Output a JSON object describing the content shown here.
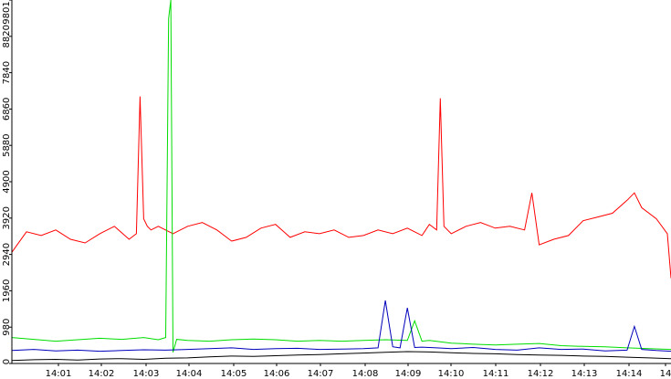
{
  "chart_data": {
    "type": "line",
    "title": "",
    "xlabel": "",
    "ylabel": "",
    "grid": false,
    "legend": "none",
    "x_range": [
      "14:00:00",
      "14:15:00"
    ],
    "ylim": [
      0,
      9801
    ],
    "y_ticks": [
      "0",
      "980",
      "1960",
      "2940",
      "3920",
      "4900",
      "5880",
      "6860",
      "7840",
      "8820",
      "9801"
    ],
    "x_ticks": [
      "14:01",
      "14:02",
      "14:03",
      "14:04",
      "14:05",
      "14:06",
      "14:07",
      "14:08",
      "14:09",
      "14:10",
      "14:11",
      "14:12",
      "14:13",
      "14:14",
      "14"
    ],
    "series": [
      {
        "color": "#ff0000",
        "x": [
          "14:00:00",
          "14:00:20",
          "14:00:40",
          "14:01:00",
          "14:01:20",
          "14:01:40",
          "14:02:00",
          "14:02:20",
          "14:02:40",
          "14:02:50",
          "14:02:55",
          "14:03:00",
          "14:03:05",
          "14:03:10",
          "14:03:20",
          "14:03:40",
          "14:04:00",
          "14:04:20",
          "14:04:40",
          "14:05:00",
          "14:05:20",
          "14:05:40",
          "14:06:00",
          "14:06:20",
          "14:06:40",
          "14:07:00",
          "14:07:20",
          "14:07:40",
          "14:08:00",
          "14:08:20",
          "14:08:40",
          "14:09:00",
          "14:09:20",
          "14:09:30",
          "14:09:40",
          "14:09:45",
          "14:09:50",
          "14:10:00",
          "14:10:20",
          "14:10:40",
          "14:11:00",
          "14:11:20",
          "14:11:40",
          "14:11:50",
          "14:12:00",
          "14:12:20",
          "14:12:40",
          "14:13:00",
          "14:13:20",
          "14:13:40",
          "14:14:00",
          "14:14:10",
          "14:14:20",
          "14:14:40",
          "14:14:55",
          "14:15:00"
        ],
        "y": [
          3000,
          3550,
          3450,
          3600,
          3350,
          3250,
          3500,
          3700,
          3350,
          3500,
          7200,
          3900,
          3700,
          3600,
          3700,
          3500,
          3700,
          3800,
          3600,
          3300,
          3400,
          3650,
          3750,
          3400,
          3550,
          3500,
          3600,
          3400,
          3450,
          3600,
          3500,
          3650,
          3450,
          3750,
          3600,
          7150,
          3700,
          3500,
          3700,
          3800,
          3650,
          3700,
          3600,
          4600,
          3200,
          3350,
          3450,
          3850,
          3950,
          4050,
          4400,
          4600,
          4200,
          3900,
          3500,
          2300
        ]
      },
      {
        "color": "#00dd00",
        "x": [
          "14:00:00",
          "14:00:30",
          "14:01:00",
          "14:01:30",
          "14:02:00",
          "14:02:30",
          "14:03:00",
          "14:03:20",
          "14:03:30",
          "14:03:34",
          "14:03:37",
          "14:03:40",
          "14:03:45",
          "14:04:00",
          "14:04:30",
          "14:05:00",
          "14:05:30",
          "14:06:00",
          "14:06:30",
          "14:07:00",
          "14:07:30",
          "14:08:00",
          "14:08:30",
          "14:09:00",
          "14:09:10",
          "14:09:20",
          "14:09:30",
          "14:10:00",
          "14:10:30",
          "14:11:00",
          "14:11:30",
          "14:12:00",
          "14:12:30",
          "14:13:00",
          "14:13:30",
          "14:14:00",
          "14:14:30",
          "14:15:00"
        ],
        "y": [
          700,
          650,
          600,
          640,
          680,
          650,
          700,
          640,
          700,
          9300,
          9801,
          300,
          650,
          620,
          600,
          640,
          660,
          640,
          600,
          620,
          600,
          620,
          640,
          620,
          1150,
          600,
          620,
          550,
          520,
          500,
          520,
          540,
          480,
          460,
          450,
          420,
          400,
          380
        ]
      },
      {
        "color": "#0000bb",
        "x": [
          "14:00:00",
          "14:00:30",
          "14:01:00",
          "14:01:30",
          "14:02:00",
          "14:02:30",
          "14:03:00",
          "14:03:30",
          "14:04:00",
          "14:04:30",
          "14:05:00",
          "14:05:30",
          "14:06:00",
          "14:06:30",
          "14:07:00",
          "14:07:30",
          "14:08:00",
          "14:08:20",
          "14:08:30",
          "14:08:40",
          "14:08:50",
          "14:09:00",
          "14:09:10",
          "14:09:20",
          "14:09:40",
          "14:10:00",
          "14:10:30",
          "14:11:00",
          "14:11:30",
          "14:12:00",
          "14:12:30",
          "14:13:00",
          "14:13:30",
          "14:14:00",
          "14:14:10",
          "14:14:20",
          "14:14:40",
          "14:15:00"
        ],
        "y": [
          350,
          380,
          340,
          360,
          330,
          350,
          370,
          360,
          380,
          400,
          420,
          380,
          400,
          410,
          380,
          390,
          400,
          420,
          1700,
          450,
          420,
          1500,
          430,
          440,
          420,
          400,
          430,
          380,
          360,
          420,
          380,
          390,
          340,
          360,
          1000,
          380,
          350,
          330
        ]
      },
      {
        "color": "#000000",
        "x": [
          "14:00:00",
          "14:00:30",
          "14:01:00",
          "14:01:30",
          "14:02:00",
          "14:02:30",
          "14:03:00",
          "14:03:30",
          "14:04:00",
          "14:04:30",
          "14:05:00",
          "14:05:30",
          "14:06:00",
          "14:06:30",
          "14:07:00",
          "14:07:30",
          "14:08:00",
          "14:08:30",
          "14:09:00",
          "14:09:30",
          "14:10:00",
          "14:10:30",
          "14:11:00",
          "14:11:30",
          "14:12:00",
          "14:12:30",
          "14:13:00",
          "14:13:30",
          "14:14:00",
          "14:14:30",
          "14:15:00"
        ],
        "y": [
          80,
          100,
          110,
          90,
          120,
          130,
          110,
          140,
          150,
          180,
          200,
          190,
          210,
          230,
          240,
          260,
          280,
          300,
          320,
          310,
          290,
          270,
          260,
          240,
          230,
          220,
          200,
          190,
          170,
          150,
          130
        ]
      }
    ]
  }
}
